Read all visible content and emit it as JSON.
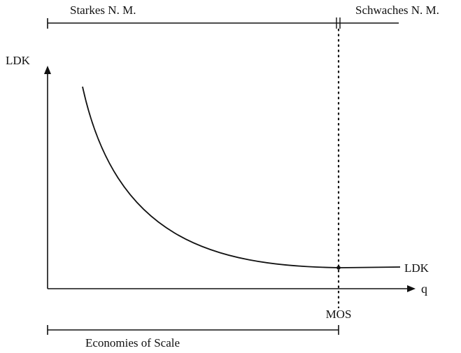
{
  "diagram": {
    "top_bar": {
      "left_label": "Starkes N. M.",
      "right_label": "Schwaches N. M."
    },
    "y_axis_label": "LDK",
    "x_axis_label": "q",
    "curve_label": "LDK",
    "mos_label": "MOS",
    "bottom_bar_label": "Economies of Scale"
  }
}
